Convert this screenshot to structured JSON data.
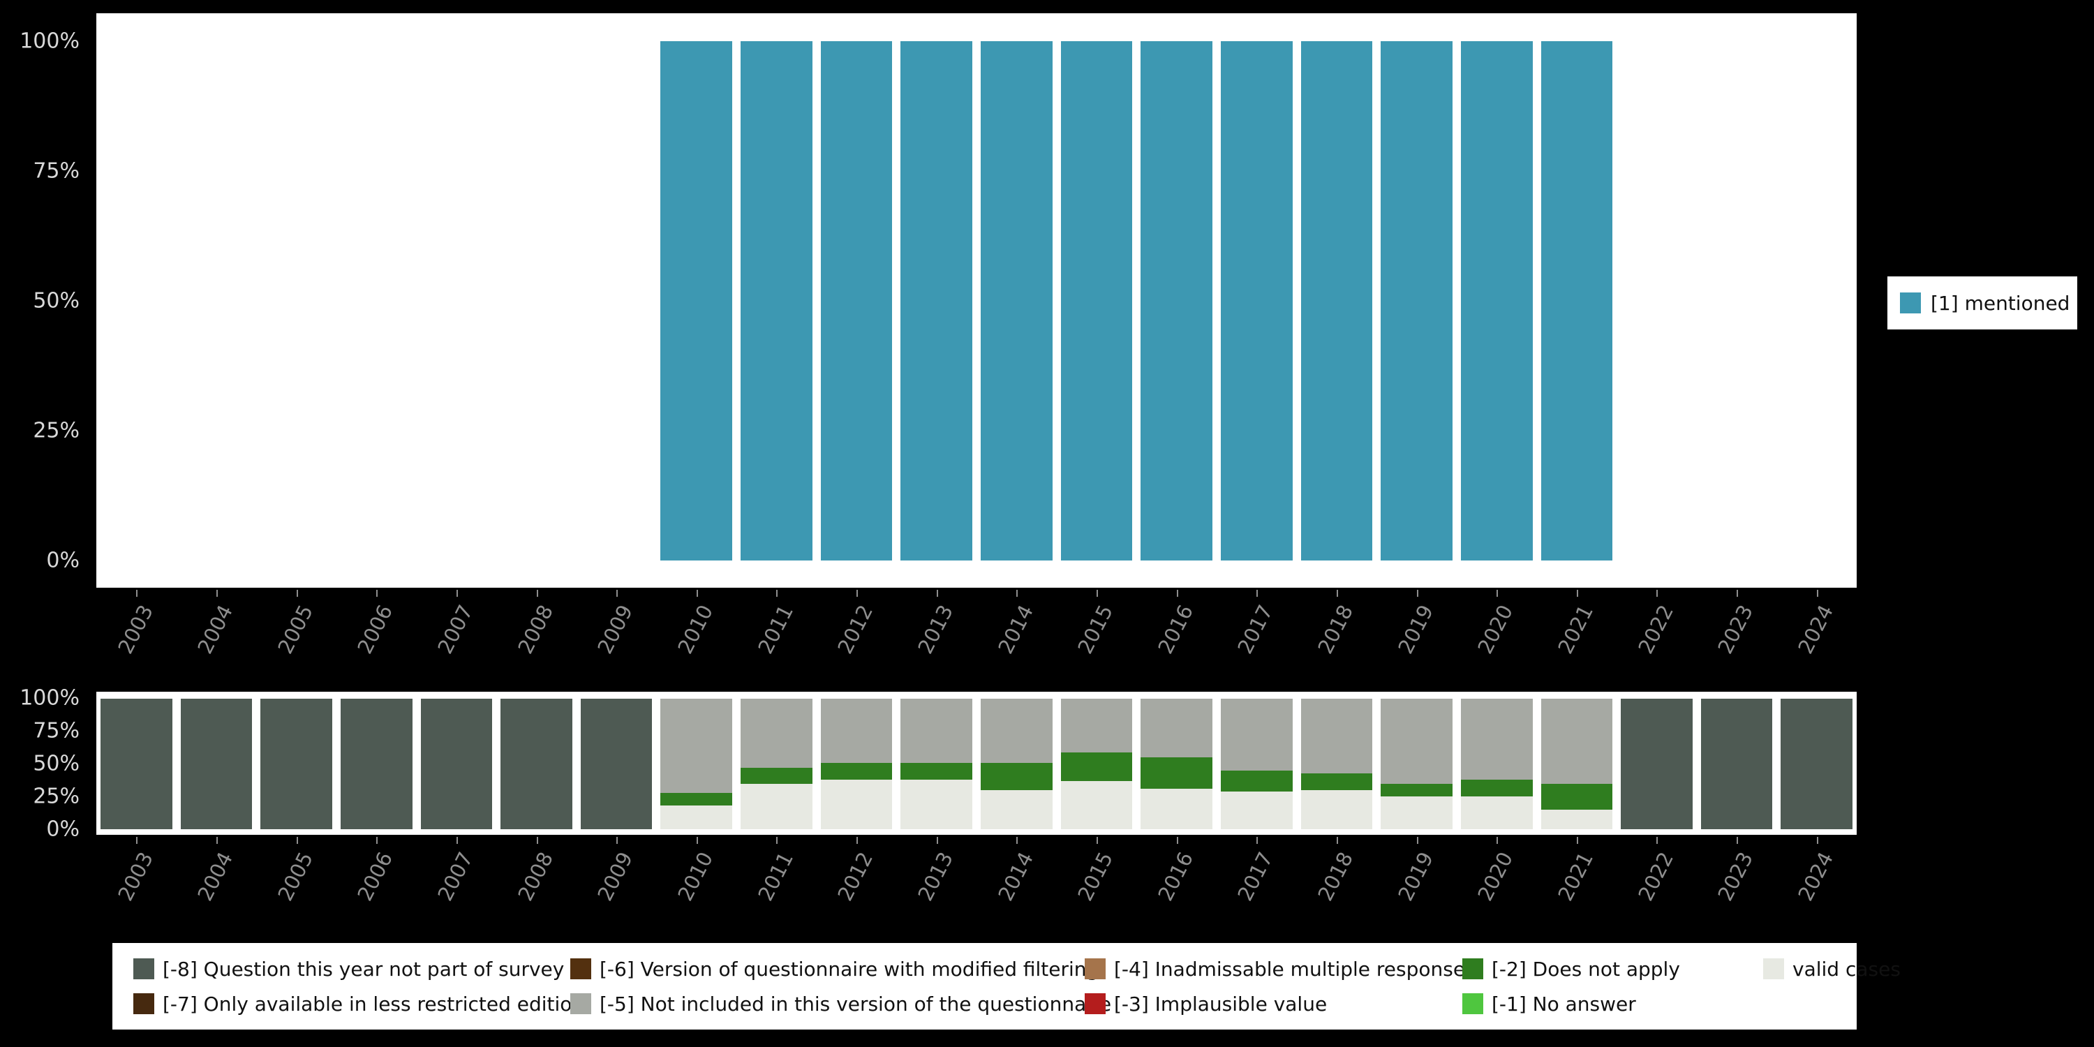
{
  "colors": {
    "background": "#000000",
    "panel": "#ffffff",
    "x_tick_label": "#8f8f8f",
    "y_tick_label": "#d9d9d9",
    "legend_text": "#111111",
    "mentioned": "#3d98b2",
    "q_not_part": "#4e5a53",
    "less_restricted": "#46290f",
    "modified_filtering": "#53300f",
    "not_included": "#a6a9a3",
    "inadmissable": "#a5744b",
    "implausible": "#b41d1d",
    "does_not_apply": "#2f7d1f",
    "no_answer": "#4fc63f",
    "valid_cases": "#e7e9e2"
  },
  "axis": {
    "years": [
      "2003",
      "2004",
      "2005",
      "2006",
      "2007",
      "2008",
      "2009",
      "2010",
      "2011",
      "2012",
      "2013",
      "2014",
      "2015",
      "2016",
      "2017",
      "2018",
      "2019",
      "2020",
      "2021",
      "2022",
      "2023",
      "2024"
    ]
  },
  "top_legend": {
    "label": "[1] mentioned",
    "color_key": "mentioned"
  },
  "bottom_legend": {
    "items": [
      {
        "label": "[-8] Question this year not part of survey",
        "color_key": "q_not_part"
      },
      {
        "label": "[-7] Only available in less restricted edition",
        "color_key": "less_restricted"
      },
      {
        "label": "[-6] Version of questionnaire with modified filtering",
        "color_key": "modified_filtering"
      },
      {
        "label": "[-5] Not included in this version of the questionnaire",
        "color_key": "not_included"
      },
      {
        "label": "[-4] Inadmissable multiple response",
        "color_key": "inadmissable"
      },
      {
        "label": "[-3] Implausible value",
        "color_key": "implausible"
      },
      {
        "label": "[-2] Does not apply",
        "color_key": "does_not_apply"
      },
      {
        "label": "[-1] No answer",
        "color_key": "no_answer"
      },
      {
        "label": "valid cases",
        "color_key": "valid_cases"
      }
    ]
  },
  "chart_data": [
    {
      "type": "bar",
      "categories": [
        "2003",
        "2004",
        "2005",
        "2006",
        "2007",
        "2008",
        "2009",
        "2010",
        "2011",
        "2012",
        "2013",
        "2014",
        "2015",
        "2016",
        "2017",
        "2018",
        "2019",
        "2020",
        "2021",
        "2022",
        "2023",
        "2024"
      ],
      "series": [
        {
          "name": "[1] mentioned",
          "color_key": "mentioned",
          "values": [
            0,
            0,
            0,
            0,
            0,
            0,
            0,
            100,
            100,
            100,
            100,
            100,
            100,
            100,
            100,
            100,
            100,
            100,
            100,
            0,
            0,
            0
          ]
        }
      ],
      "ylim": [
        0,
        100
      ],
      "yticks": [
        "0%",
        "25%",
        "50%",
        "75%",
        "100%"
      ],
      "legend_position": "right",
      "grid": false
    },
    {
      "type": "stacked_bar",
      "categories": [
        "2003",
        "2004",
        "2005",
        "2006",
        "2007",
        "2008",
        "2009",
        "2010",
        "2011",
        "2012",
        "2013",
        "2014",
        "2015",
        "2016",
        "2017",
        "2018",
        "2019",
        "2020",
        "2021",
        "2022",
        "2023",
        "2024"
      ],
      "series": [
        {
          "name": "valid cases",
          "color_key": "valid_cases",
          "values": [
            0,
            0,
            0,
            0,
            0,
            0,
            0,
            18,
            35,
            38,
            38,
            30,
            37,
            31,
            29,
            30,
            25,
            25,
            15,
            0,
            0,
            0
          ]
        },
        {
          "name": "[-2] Does not apply",
          "color_key": "does_not_apply",
          "values": [
            0,
            0,
            0,
            0,
            0,
            0,
            0,
            10,
            12,
            13,
            13,
            21,
            22,
            24,
            16,
            13,
            10,
            13,
            20,
            0,
            0,
            0
          ]
        },
        {
          "name": "[-5] Not included in this version of the questionnaire",
          "color_key": "not_included",
          "values": [
            0,
            0,
            0,
            0,
            0,
            0,
            0,
            72,
            53,
            49,
            49,
            49,
            41,
            45,
            55,
            57,
            65,
            62,
            65,
            0,
            0,
            0
          ]
        },
        {
          "name": "[-8] Question this year not part of survey",
          "color_key": "q_not_part",
          "values": [
            100,
            100,
            100,
            100,
            100,
            100,
            100,
            0,
            0,
            0,
            0,
            0,
            0,
            0,
            0,
            0,
            0,
            0,
            0,
            100,
            100,
            100
          ]
        }
      ],
      "ylim": [
        0,
        100
      ],
      "yticks": [
        "0%",
        "25%",
        "50%",
        "75%",
        "100%"
      ],
      "legend_position": "bottom",
      "grid": false
    }
  ]
}
